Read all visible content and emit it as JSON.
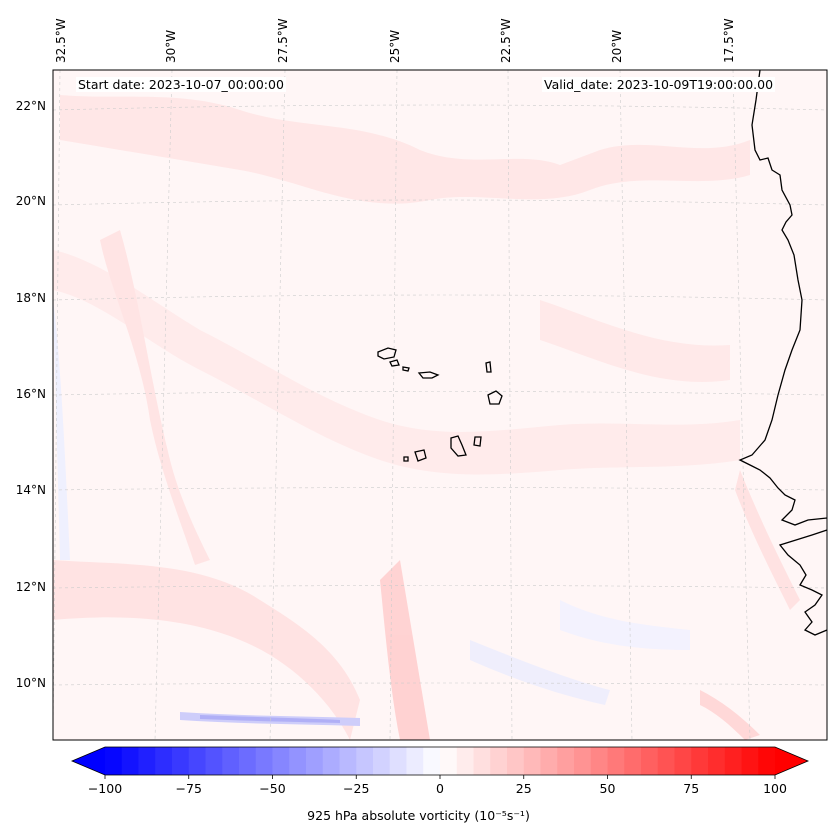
{
  "map": {
    "start_date": "Start date: 2023-10-07_00:00:00",
    "valid_date": "Valid_date: 2023-10-09T19:00:00.00",
    "longitude_labels": [
      "32.5°W",
      "30°W",
      "27.5°W",
      "25°W",
      "22.5°W",
      "20°W",
      "17.5°W"
    ],
    "latitude_labels": [
      "22°N",
      "20°N",
      "18°N",
      "16°N",
      "14°N",
      "12°N",
      "10°N"
    ],
    "field": "925 hPa absolute vorticity",
    "colormap": "bwr",
    "colors": {
      "negative": "#0000ff",
      "neutral": "#ffffff",
      "positive": "#ff0000",
      "background_field": "#fff6f6",
      "coastline": "#000000",
      "gridline": "#cccccc"
    },
    "features": [
      "cape-verde-islands",
      "west-african-coast"
    ]
  },
  "colorbar": {
    "label": "925 hPa absolute vorticity (10⁻⁵s⁻¹)",
    "ticks": [
      "−100",
      "−75",
      "−50",
      "−25",
      "0",
      "25",
      "50",
      "75",
      "100"
    ],
    "range": [
      -100,
      100
    ],
    "extend": "both"
  }
}
